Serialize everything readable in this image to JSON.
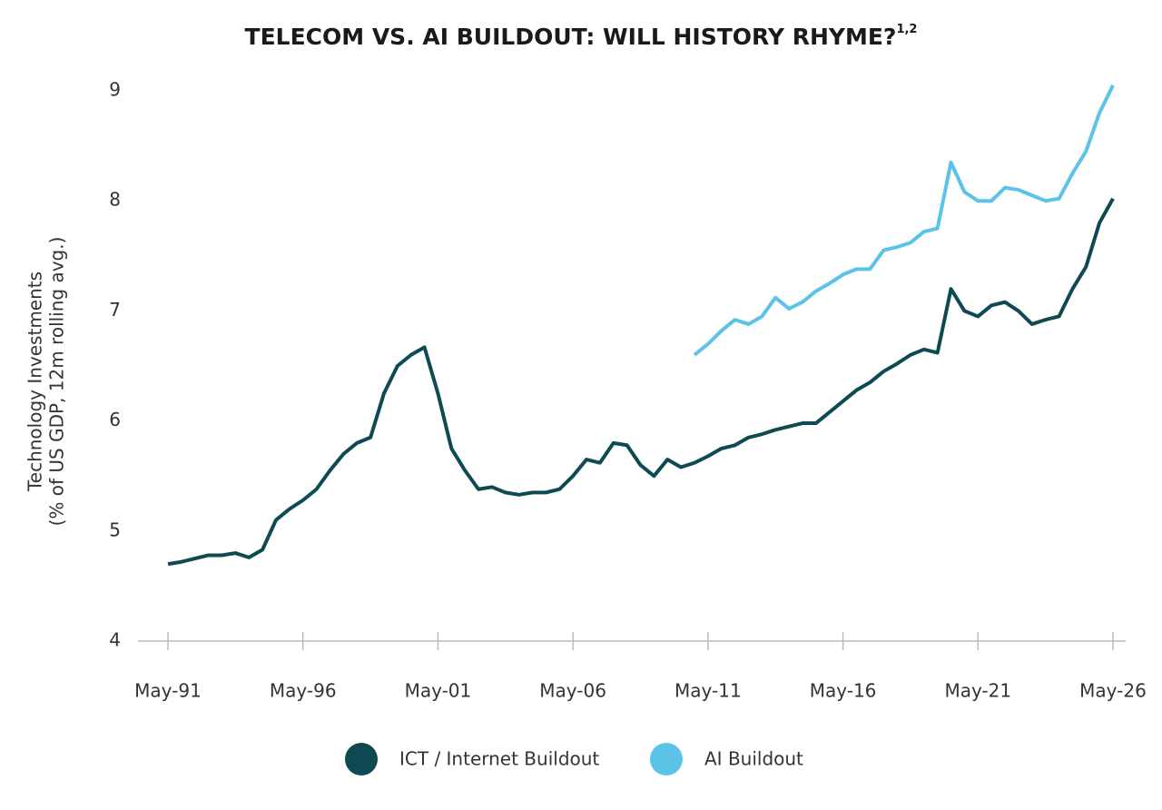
{
  "chart_data": {
    "type": "line",
    "title": "TELECOM VS. AI BUILDOUT: WILL HISTORY RHYME?",
    "title_superscript": "1,2",
    "y_label": [
      "Technology Investments",
      "(% of US GDP, 12m rolling avg.)"
    ],
    "x": [
      "May-91",
      "Nov-91",
      "May-92",
      "Nov-92",
      "May-93",
      "Nov-93",
      "May-94",
      "Nov-94",
      "May-95",
      "Nov-95",
      "May-96",
      "Nov-96",
      "May-97",
      "Nov-97",
      "May-98",
      "Nov-98",
      "May-99",
      "Nov-99",
      "May-00",
      "Nov-00",
      "May-01",
      "Nov-01",
      "May-02",
      "Nov-02",
      "May-03",
      "Nov-03",
      "May-04",
      "Nov-04",
      "May-05",
      "Nov-05",
      "May-06",
      "Nov-06",
      "May-07",
      "Nov-07",
      "May-08",
      "Nov-08",
      "May-09",
      "Nov-09",
      "May-10",
      "Nov-10",
      "May-11",
      "Nov-11",
      "May-12",
      "Nov-12",
      "May-13",
      "Nov-13",
      "May-14",
      "Nov-14",
      "May-15",
      "Nov-15",
      "May-16",
      "Nov-16",
      "May-17",
      "Nov-17",
      "May-18",
      "Nov-18",
      "May-19",
      "Nov-19",
      "May-20",
      "Nov-20",
      "May-21",
      "Nov-21",
      "May-22",
      "Nov-22",
      "May-23",
      "Nov-23",
      "May-24",
      "Nov-24",
      "May-25",
      "Nov-25",
      "May-26"
    ],
    "xticks": [
      "May-91",
      "May-96",
      "May-01",
      "May-06",
      "May-11",
      "May-16",
      "May-21",
      "May-26"
    ],
    "ylim": [
      4,
      9
    ],
    "yticks": [
      4,
      5,
      6,
      7,
      8,
      9
    ],
    "grid": false,
    "series": [
      {
        "name": "ICT / Internet Buildout",
        "color": "#0d4a52",
        "values": [
          4.7,
          4.72,
          4.75,
          4.78,
          4.78,
          4.8,
          4.76,
          4.83,
          5.1,
          5.2,
          5.28,
          5.38,
          5.55,
          5.7,
          5.8,
          5.85,
          6.25,
          6.5,
          6.6,
          6.67,
          6.25,
          5.75,
          5.55,
          5.38,
          5.4,
          5.35,
          5.33,
          5.35,
          5.35,
          5.38,
          5.5,
          5.65,
          5.62,
          5.8,
          5.78,
          5.6,
          5.5,
          5.65,
          5.58,
          5.62,
          5.68,
          5.75,
          5.78,
          5.85,
          5.88,
          5.92,
          5.95,
          5.98,
          5.98,
          6.08,
          6.18,
          6.28,
          6.35,
          6.45,
          6.52,
          6.6,
          6.65,
          6.62,
          7.2,
          7.0,
          6.95,
          7.05,
          7.08,
          7.0,
          6.88,
          6.92,
          6.95,
          7.2,
          7.4,
          7.8,
          8.02
        ]
      },
      {
        "name": "AI Buildout",
        "color": "#5bc3e8",
        "values": [
          null,
          null,
          null,
          null,
          null,
          null,
          null,
          null,
          null,
          null,
          null,
          null,
          null,
          null,
          null,
          null,
          null,
          null,
          null,
          null,
          null,
          null,
          null,
          null,
          null,
          null,
          null,
          null,
          null,
          null,
          null,
          null,
          null,
          null,
          null,
          null,
          null,
          null,
          null,
          6.6,
          6.7,
          6.82,
          6.92,
          6.88,
          6.95,
          7.12,
          7.02,
          7.08,
          7.18,
          7.25,
          7.33,
          7.38,
          7.38,
          7.55,
          7.58,
          7.62,
          7.72,
          7.75,
          8.35,
          8.08,
          8.0,
          8.0,
          8.12,
          8.1,
          8.05,
          8.0,
          8.02,
          8.25,
          8.45,
          8.8,
          9.05
        ]
      }
    ]
  }
}
